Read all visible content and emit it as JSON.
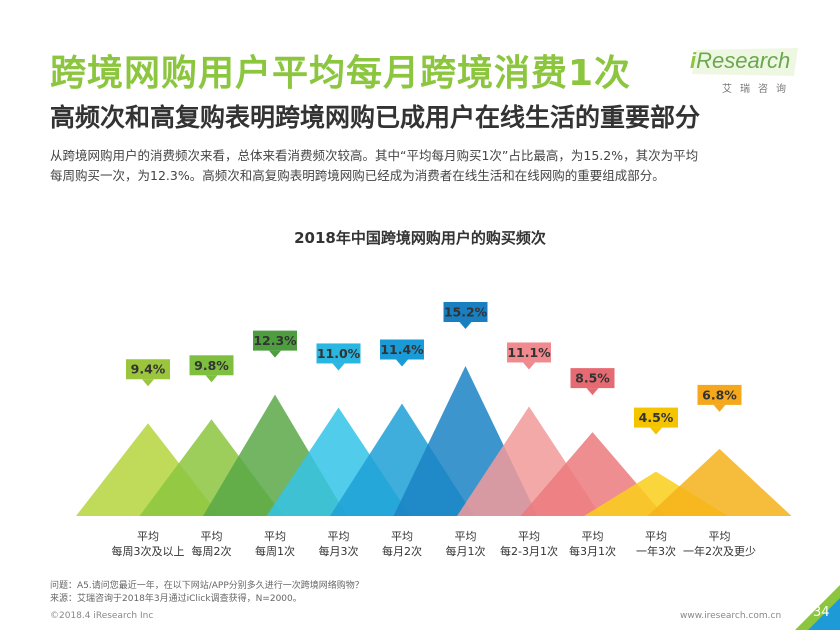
{
  "header": {
    "title": "跨境网购用户平均每月跨境消费1次",
    "subtitle": "高频次和高复购表明跨境网购已成用户在线生活的重要部分",
    "intro_line1": "从跨境网购用户的消费频次来看，总体来看消费频次较高。其中“平均每月购买1次”占比最高，为15.2%，其次为平均",
    "intro_line2": "每周购买一次，为12.3%。高频次和高复购表明跨境网购已经成为消费者在线生活和在线网购的重要组成部分。"
  },
  "logo": {
    "i_letter": "i",
    "name": "Research",
    "chinese": "艾瑞咨询"
  },
  "chart_data": {
    "type": "bar",
    "title": "2018年中国跨境网购用户的购买频次",
    "categories": [
      [
        "平均",
        "每周3次及以上"
      ],
      [
        "平均",
        "每周2次"
      ],
      [
        "平均",
        "每周1次"
      ],
      [
        "平均",
        "每月3次"
      ],
      [
        "平均",
        "每月2次"
      ],
      [
        "平均",
        "每月1次"
      ],
      [
        "平均",
        "每2-3月1次"
      ],
      [
        "平均",
        "每3月1次"
      ],
      [
        "平均",
        "一年3次"
      ],
      [
        "平均",
        "一年2次及更少"
      ]
    ],
    "values": [
      9.4,
      9.8,
      12.3,
      11.0,
      11.4,
      15.2,
      11.1,
      8.5,
      4.5,
      6.8
    ],
    "labels": [
      "9.4%",
      "9.8%",
      "12.3%",
      "11.0%",
      "11.4%",
      "15.2%",
      "11.1%",
      "8.5%",
      "4.5%",
      "6.8%"
    ],
    "colors": [
      "#b5d33d",
      "#8cc63f",
      "#5aa846",
      "#34c3e8",
      "#1ea0d6",
      "#1b82c4",
      "#f29a9a",
      "#ec7a7e",
      "#f9cf1a",
      "#f5b21a"
    ],
    "label_colors": [
      "#9bc53d",
      "#7fbf3f",
      "#4e9e3f",
      "#29b6e0",
      "#1a9bd7",
      "#1a7fc1",
      "#f08a8f",
      "#e66a72",
      "#f5c400",
      "#f5a81c"
    ],
    "xlabel": "",
    "ylabel": "",
    "ylim": [
      0,
      16
    ],
    "grid": false,
    "legend": "none"
  },
  "footer": {
    "question": "问题：A5.请问您最近一年，在以下网站/APP分别多久进行一次跨境网络购物？",
    "source": "来源：艾瑞咨询于2018年3月通过iClick调查获得，N=2000。",
    "copyright": "©2018.4 iResearch Inc",
    "url": "www.iresearch.com.cn",
    "page": "34"
  }
}
